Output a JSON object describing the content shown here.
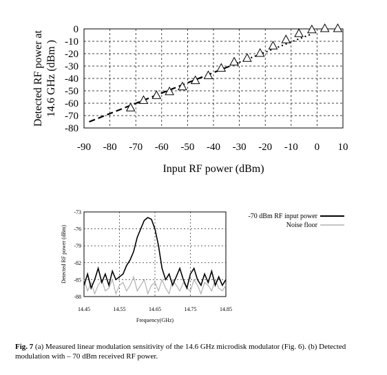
{
  "chart_data": [
    {
      "type": "scatter",
      "xlabel": "Input RF power (dBm)",
      "ylabel_lines": [
        "Detected RF power at",
        "14.6 GHz (dBm )"
      ],
      "xlim": [
        -90,
        10
      ],
      "ylim": [
        -80,
        0
      ],
      "x_ticks": [
        -90,
        -80,
        -70,
        -60,
        -50,
        -40,
        -30,
        -20,
        -10,
        0,
        10
      ],
      "y_ticks": [
        0,
        -10,
        -20,
        -30,
        -40,
        -50,
        -60,
        -70,
        -80
      ],
      "grid": true,
      "series": [
        {
          "marker": "triangle-open",
          "x": [
            -72,
            -67,
            -62,
            -57,
            -52,
            -47,
            -42,
            -37,
            -32,
            -27,
            -22,
            -17,
            -12,
            -7,
            -2,
            3,
            8
          ],
          "y": [
            -64,
            -58,
            -54,
            -51,
            -47,
            -42,
            -38,
            -32,
            -27,
            -24,
            -20,
            -14,
            -9,
            -4,
            -1,
            0,
            0
          ]
        },
        {
          "line": "dashed",
          "x": [
            -88,
            -30
          ],
          "y": [
            -75,
            -27
          ]
        },
        {
          "line": "dotted",
          "x": [
            -30,
            -2
          ],
          "y": [
            -27,
            -4
          ]
        }
      ]
    },
    {
      "type": "line",
      "xlabel": "Frequency(GHz)",
      "ylabel": "Detected RF power (dBm)",
      "xlim": [
        14.45,
        14.85
      ],
      "ylim": [
        -88,
        -73
      ],
      "x_ticks": [
        "14.45",
        "14.55",
        "14.65",
        "14.75",
        "14.85"
      ],
      "y_ticks": [
        "-73",
        "-76",
        "-79",
        "-82",
        "-85",
        "-88"
      ],
      "grid": true,
      "legend_position": "right",
      "series": [
        {
          "name": "-70 dBm RF input power",
          "color": "#000000",
          "x": [
            14.45,
            14.46,
            14.47,
            14.48,
            14.49,
            14.5,
            14.51,
            14.52,
            14.53,
            14.54,
            14.55,
            14.56,
            14.57,
            14.58,
            14.59,
            14.6,
            14.61,
            14.62,
            14.63,
            14.64,
            14.65,
            14.66,
            14.67,
            14.68,
            14.69,
            14.7,
            14.71,
            14.72,
            14.73,
            14.74,
            14.75,
            14.76,
            14.77,
            14.78,
            14.79,
            14.8,
            14.81,
            14.82,
            14.83,
            14.84,
            14.85
          ],
          "y": [
            -86,
            -84,
            -86.5,
            -85,
            -83,
            -85.5,
            -84,
            -86,
            -83.5,
            -85,
            -84.5,
            -84,
            -82.5,
            -81.5,
            -80,
            -77.5,
            -76,
            -74.5,
            -74,
            -74.3,
            -76,
            -79,
            -83,
            -85,
            -84,
            -86,
            -84.5,
            -83,
            -85,
            -86.5,
            -84,
            -83,
            -85,
            -86,
            -84,
            -85.5,
            -83.5,
            -86,
            -84.5,
            -86,
            -85
          ]
        },
        {
          "name": "Noise floor",
          "color": "#b0b0b0",
          "x": [
            14.45,
            14.46,
            14.47,
            14.48,
            14.49,
            14.5,
            14.51,
            14.52,
            14.53,
            14.54,
            14.55,
            14.56,
            14.57,
            14.58,
            14.59,
            14.6,
            14.61,
            14.62,
            14.63,
            14.64,
            14.65,
            14.66,
            14.67,
            14.68,
            14.69,
            14.7,
            14.71,
            14.72,
            14.73,
            14.74,
            14.75,
            14.76,
            14.77,
            14.78,
            14.79,
            14.8,
            14.81,
            14.82,
            14.83,
            14.84,
            14.85
          ],
          "y": [
            -85,
            -87,
            -85.5,
            -87.5,
            -86,
            -85,
            -87,
            -86.5,
            -85,
            -87.5,
            -86,
            -85.5,
            -87,
            -86,
            -84.5,
            -87,
            -86,
            -85,
            -87.5,
            -86,
            -85.5,
            -87,
            -85,
            -86.5,
            -87.5,
            -85,
            -86,
            -87,
            -85.5,
            -86.5,
            -87,
            -85,
            -86,
            -87.5,
            -85.5,
            -86,
            -87,
            -85,
            -86.5,
            -87,
            -86
          ]
        }
      ]
    }
  ],
  "caption": {
    "label": "Fig. 7",
    "text": "(a) Measured linear modulation sensitivity of the 14.6 GHz microdisk modulator (Fig. 6). (b) Detected modulation with – 70 dBm received RF power."
  }
}
